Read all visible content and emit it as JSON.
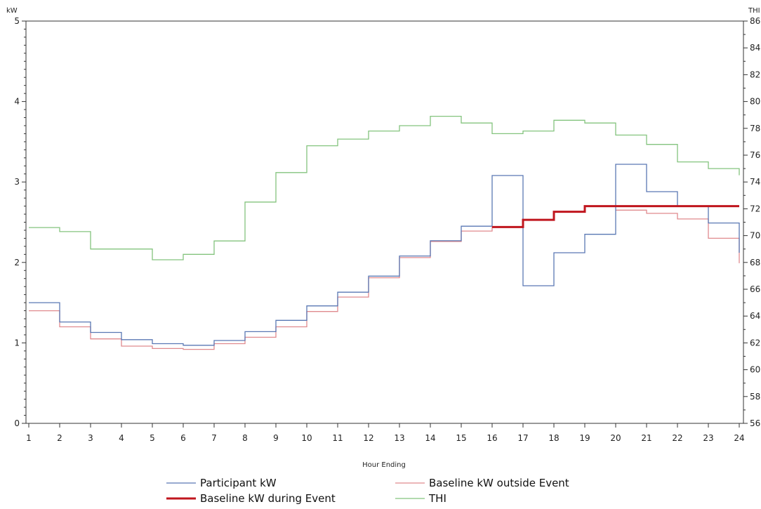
{
  "chart_data": {
    "type": "line",
    "step": true,
    "xlabel": "Hour Ending",
    "y_left_label": "kW",
    "y_right_label": "THI",
    "x_ticks": [
      1,
      2,
      3,
      4,
      5,
      6,
      7,
      8,
      9,
      10,
      11,
      12,
      13,
      14,
      15,
      16,
      17,
      18,
      19,
      20,
      21,
      22,
      23,
      24
    ],
    "xlim": [
      1,
      24
    ],
    "y_left_ticks": [
      0,
      1,
      2,
      3,
      4,
      5
    ],
    "y_left_lim": [
      0,
      5
    ],
    "y_right_ticks": [
      56,
      58,
      60,
      62,
      64,
      66,
      68,
      70,
      72,
      74,
      76,
      78,
      80,
      82,
      84,
      86
    ],
    "y_right_lim": [
      56,
      86
    ],
    "grid": false,
    "legend_position": "bottom",
    "series": [
      {
        "name": "Participant kW",
        "axis": "left",
        "color": "#5a78b4",
        "width": 1.3,
        "x": [
          1,
          2,
          3,
          4,
          5,
          6,
          7,
          8,
          9,
          10,
          11,
          12,
          13,
          14,
          15,
          16,
          17,
          18,
          19,
          20,
          21,
          22,
          23,
          24
        ],
        "values": [
          1.5,
          1.26,
          1.13,
          1.04,
          0.99,
          0.97,
          1.03,
          1.14,
          1.28,
          1.46,
          1.63,
          1.83,
          2.08,
          2.27,
          2.45,
          3.08,
          1.71,
          2.12,
          2.35,
          3.22,
          2.88,
          2.7,
          2.49,
          2.12
        ]
      },
      {
        "name": "Baseline kW outside Event",
        "axis": "left",
        "color": "#e08a8e",
        "width": 1.3,
        "x": [
          1,
          2,
          3,
          4,
          5,
          6,
          7,
          8,
          9,
          10,
          11,
          12,
          13,
          14,
          15,
          16,
          17,
          18,
          19,
          20,
          21,
          22,
          23,
          24
        ],
        "values": [
          1.4,
          1.2,
          1.05,
          0.96,
          0.93,
          0.92,
          0.99,
          1.07,
          1.2,
          1.39,
          1.57,
          1.81,
          2.06,
          2.26,
          2.39,
          2.44,
          null,
          null,
          null,
          2.65,
          2.61,
          2.54,
          2.3,
          1.99
        ]
      },
      {
        "name": "Baseline kW during Event",
        "axis": "left",
        "color": "#c0161e",
        "width": 3,
        "x": [
          16,
          17,
          18,
          19
        ],
        "values": [
          2.44,
          2.53,
          2.63,
          2.7
        ]
      },
      {
        "name": "THI",
        "axis": "right",
        "color": "#84c47e",
        "width": 1.3,
        "x": [
          1,
          2,
          3,
          4,
          5,
          6,
          7,
          8,
          9,
          10,
          11,
          12,
          13,
          14,
          15,
          16,
          17,
          18,
          19,
          20,
          21,
          22,
          23,
          24
        ],
        "values": [
          70.6,
          70.3,
          69.0,
          69.0,
          68.2,
          68.6,
          69.6,
          72.5,
          74.7,
          76.7,
          77.2,
          77.8,
          78.2,
          78.9,
          78.4,
          77.6,
          77.8,
          78.6,
          78.4,
          77.5,
          76.8,
          75.5,
          75.0,
          74.5
        ]
      }
    ]
  }
}
